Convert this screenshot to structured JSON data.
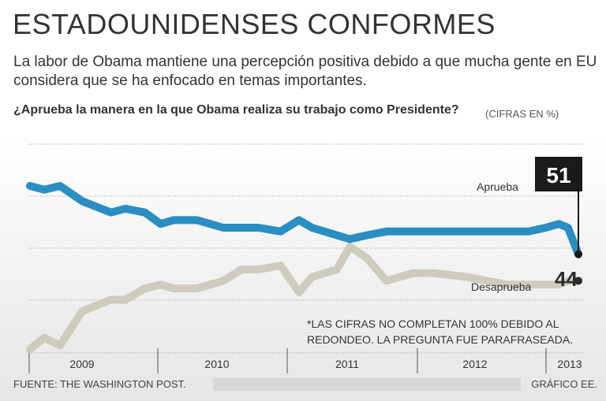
{
  "header": {
    "title": "ESTADOUNIDENSES CONFORMES",
    "subtitle": "La labor de Obama mantiene una percepción positiva debido a que mucha gente en EU considera que se ha enfocado en temas importantes.",
    "question": "¿Aprueba la manera en la que Obama realiza su trabajo como Presidente?",
    "units": "(CIFRAS EN %)"
  },
  "colors": {
    "approve": "#2a8ec2",
    "disapprove": "#cfcbbe",
    "callout_bg": "#1a1a1a",
    "grid": "#9a9a9a"
  },
  "chart_data": {
    "type": "line",
    "title": "¿Aprueba la manera en la que Obama realiza su trabajo como Presidente?",
    "xlabel": "",
    "ylabel": "CIFRAS EN %",
    "ylim": [
      25,
      80
    ],
    "grid": true,
    "x_range": [
      2009.0,
      2013.2
    ],
    "x_ticks": [
      2009.0,
      2010.0,
      2011.0,
      2012.0,
      2013.0
    ],
    "tick_labels": [
      "2009",
      "2010",
      "2011",
      "2012",
      "2013"
    ],
    "series": [
      {
        "name": "Aprueba",
        "label_position": "right",
        "points": [
          [
            2009.0,
            69
          ],
          [
            2009.11,
            68
          ],
          [
            2009.23,
            69
          ],
          [
            2009.4,
            65
          ],
          [
            2009.62,
            62
          ],
          [
            2009.73,
            63
          ],
          [
            2009.88,
            62
          ],
          [
            2010.0,
            59
          ],
          [
            2010.1,
            60
          ],
          [
            2010.28,
            60
          ],
          [
            2010.48,
            58
          ],
          [
            2010.62,
            58
          ],
          [
            2010.75,
            58
          ],
          [
            2010.92,
            57
          ],
          [
            2011.06,
            60
          ],
          [
            2011.16,
            58
          ],
          [
            2011.35,
            56
          ],
          [
            2011.45,
            55
          ],
          [
            2011.58,
            56
          ],
          [
            2011.73,
            57
          ],
          [
            2011.93,
            57
          ],
          [
            2012.1,
            57
          ],
          [
            2012.35,
            57
          ],
          [
            2012.5,
            57
          ],
          [
            2012.65,
            57
          ],
          [
            2012.82,
            57
          ],
          [
            2012.95,
            58
          ],
          [
            2013.05,
            59
          ],
          [
            2013.12,
            58
          ],
          [
            2013.2,
            51
          ]
        ]
      },
      {
        "name": "Desaprueba",
        "label_position": "right",
        "points": [
          [
            2009.0,
            26
          ],
          [
            2009.11,
            29
          ],
          [
            2009.23,
            27
          ],
          [
            2009.4,
            36
          ],
          [
            2009.62,
            39
          ],
          [
            2009.73,
            39
          ],
          [
            2009.88,
            42
          ],
          [
            2010.0,
            43
          ],
          [
            2010.1,
            42
          ],
          [
            2010.28,
            42
          ],
          [
            2010.48,
            44
          ],
          [
            2010.62,
            47
          ],
          [
            2010.75,
            47
          ],
          [
            2010.92,
            48
          ],
          [
            2011.06,
            41
          ],
          [
            2011.16,
            45
          ],
          [
            2011.35,
            47
          ],
          [
            2011.45,
            53
          ],
          [
            2011.58,
            50
          ],
          [
            2011.73,
            44
          ],
          [
            2011.93,
            46
          ],
          [
            2012.1,
            46
          ],
          [
            2012.35,
            45
          ],
          [
            2012.5,
            44
          ],
          [
            2012.65,
            43
          ],
          [
            2012.82,
            43
          ],
          [
            2012.95,
            43
          ],
          [
            2013.05,
            43
          ],
          [
            2013.12,
            44
          ],
          [
            2013.2,
            44
          ]
        ]
      }
    ],
    "approve_last_value": "51",
    "disapprove_last_value": "44"
  },
  "footnote": "*LAS CIFRAS NO COMPLETAN 100% DEBIDO AL REDONDEO. LA PREGUNTA FUE PARAFRASEADA.",
  "footer": {
    "source": "FUENTE: THE WASHINGTON POST.",
    "credit": "GRÁFICO EE."
  }
}
